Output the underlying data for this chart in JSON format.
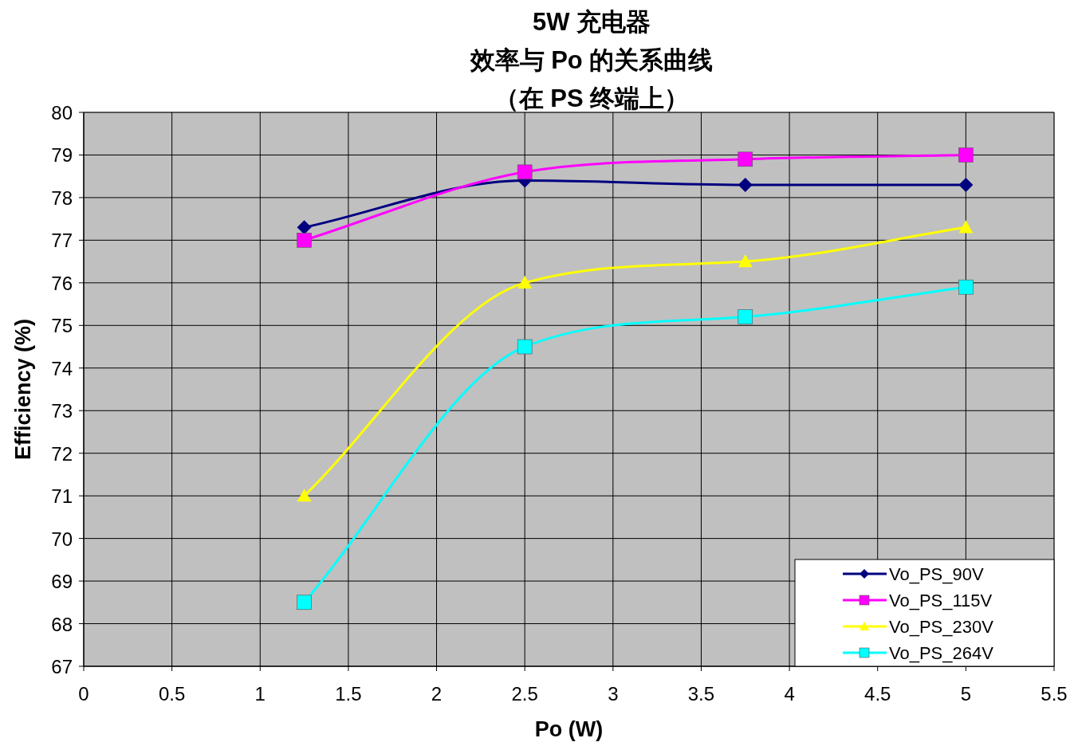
{
  "chart_data": {
    "type": "line",
    "title": "5W 充电器",
    "subtitle": "效率与 Po 的关系曲线",
    "annotations": [
      "（在 PS 终端上）"
    ],
    "xlabel": "Po (W)",
    "ylabel": "Efficiency (%)",
    "x": [
      1.25,
      2.5,
      3.75,
      5
    ],
    "series": [
      {
        "name": "Vo_PS_90V",
        "color": "#000080",
        "marker": "diamond",
        "values": [
          77.3,
          78.4,
          78.3,
          78.3
        ]
      },
      {
        "name": "Vo_PS_115V",
        "color": "#ff00ff",
        "marker": "square",
        "values": [
          77.0,
          78.6,
          78.9,
          79.0
        ]
      },
      {
        "name": "Vo_PS_230V",
        "color": "#ffff00",
        "marker": "triangle",
        "values": [
          71.0,
          76.0,
          76.5,
          77.3
        ]
      },
      {
        "name": "Vo_PS_264V",
        "color": "#00ffff",
        "marker": "square",
        "values": [
          68.5,
          74.5,
          75.2,
          75.9
        ]
      }
    ],
    "xlim": [
      0,
      5.5
    ],
    "xticks": [
      0,
      0.5,
      1,
      1.5,
      2,
      2.5,
      3,
      3.5,
      4,
      4.5,
      5,
      5.5
    ],
    "ylim": [
      67,
      80
    ],
    "yticks": [
      67,
      68,
      69,
      70,
      71,
      72,
      73,
      74,
      75,
      76,
      77,
      78,
      79,
      80
    ],
    "grid": true,
    "legend": "bottom right",
    "line_style": "solid"
  }
}
